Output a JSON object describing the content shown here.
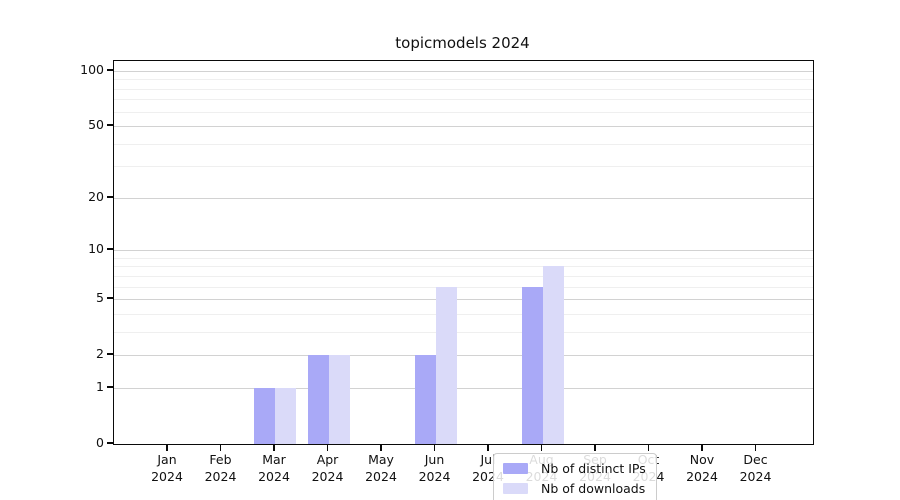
{
  "title": "topicmodels 2024",
  "chart_data": {
    "type": "bar",
    "title": "topicmodels 2024",
    "xlabel": "",
    "ylabel": "",
    "yscale": "log1p",
    "ylim": [
      0,
      113
    ],
    "grid": "horizontal",
    "legend_position": "lower center",
    "categories": [
      "Jan 2024",
      "Feb 2024",
      "Mar 2024",
      "Apr 2024",
      "May 2024",
      "Jun 2024",
      "Jul 2024",
      "Aug 2024",
      "Sep 2024",
      "Oct 2024",
      "Nov 2024",
      "Dec 2024"
    ],
    "x_tick_months": [
      "Jan",
      "Feb",
      "Mar",
      "Apr",
      "May",
      "Jun",
      "Jul",
      "Aug",
      "Sep",
      "Oct",
      "Nov",
      "Dec"
    ],
    "x_tick_year": "2024",
    "y_major_ticks": [
      0,
      1,
      2,
      5,
      10,
      20,
      50,
      100
    ],
    "y_minor_gridlines": [
      3,
      4,
      6,
      7,
      8,
      9,
      30,
      40,
      60,
      70,
      80,
      90
    ],
    "series": [
      {
        "name": "Nb of distinct IPs",
        "color": "#a9a9f7",
        "values": [
          0,
          0,
          1,
          2,
          0,
          2,
          0,
          6,
          0,
          0,
          0,
          0
        ]
      },
      {
        "name": "Nb of downloads",
        "color": "#dadaf9",
        "values": [
          0,
          0,
          1,
          2,
          0,
          6,
          0,
          8,
          0,
          0,
          0,
          0
        ]
      }
    ]
  },
  "legend": {
    "entries": [
      "Nb of distinct IPs",
      "Nb of downloads"
    ]
  },
  "colors": {
    "bar_distinct_ips": "#a9a9f7",
    "bar_downloads": "#dadaf9",
    "grid_major": "#d2d2d2",
    "grid_minor": "#efefef",
    "axis": "#0a0a0a"
  }
}
